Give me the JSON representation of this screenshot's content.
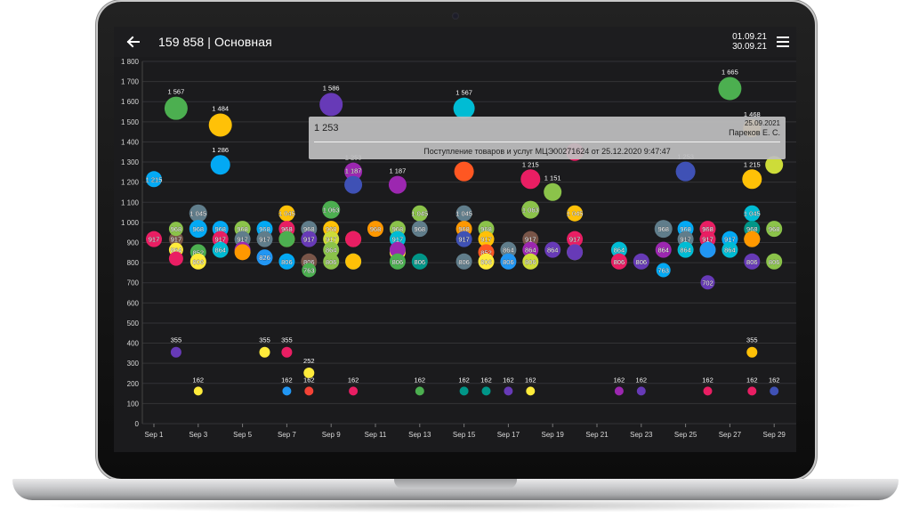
{
  "app": {
    "title": "159 858 | Основная",
    "date_from": "01.09.21",
    "date_to": "30.09.21",
    "back_icon": "arrow-left-icon",
    "menu_icon": "hamburger-menu-icon"
  },
  "tooltip": {
    "value": "1 253",
    "date": "25.09.2021",
    "user": "Пареков Е. С.",
    "document": "Поступление товаров и услуг МЦЭ00271624 от 25.12.2020 9:47:47"
  },
  "chart_data": {
    "type": "scatter",
    "ylim": [
      0,
      1800
    ],
    "yticks": [
      "0",
      "100",
      "200",
      "300",
      "400",
      "500",
      "600",
      "700",
      "800",
      "900",
      "1 000",
      "1 100",
      "1 200",
      "1 300",
      "1 400",
      "1 500",
      "1 600",
      "1 700",
      "1 800"
    ],
    "xticks": [
      "Sep 1",
      "Sep 3",
      "Sep 5",
      "Sep 7",
      "Sep 9",
      "Sep 11",
      "Sep 13",
      "Sep 15",
      "Sep 17",
      "Sep 19",
      "Sep 21",
      "Sep 23",
      "Sep 25",
      "Sep 27",
      "Sep 29"
    ],
    "grid": true,
    "points": [
      {
        "x": 0,
        "y": 917,
        "label": "917",
        "r": 9,
        "color": "#e91e63"
      },
      {
        "x": 0,
        "y": 1215,
        "label": "1 215",
        "r": 9,
        "color": "#03a9f4"
      },
      {
        "x": 1,
        "y": 1567,
        "label": "1 567",
        "r": 13,
        "color": "#4caf50"
      },
      {
        "x": 1,
        "y": 917,
        "label": "917",
        "r": 8,
        "color": "#795548"
      },
      {
        "x": 1,
        "y": 968,
        "label": "968",
        "r": 8,
        "color": "#8bc34a"
      },
      {
        "x": 1,
        "y": 864,
        "label": "864",
        "r": 8,
        "color": "#ffeb3b"
      },
      {
        "x": 1,
        "y": 820,
        "label": "",
        "r": 8,
        "color": "#e91e63"
      },
      {
        "x": 1,
        "y": 355,
        "label": "355",
        "r": 6,
        "color": "#673ab7"
      },
      {
        "x": 2,
        "y": 1045,
        "label": "1 045",
        "r": 10,
        "color": "#607d8b"
      },
      {
        "x": 2,
        "y": 968,
        "label": "968",
        "r": 10,
        "color": "#03a9f4"
      },
      {
        "x": 2,
        "y": 852,
        "label": "852",
        "r": 9,
        "color": "#4caf50"
      },
      {
        "x": 2,
        "y": 806,
        "label": "806",
        "r": 9,
        "color": "#ffeb3b"
      },
      {
        "x": 2,
        "y": 162,
        "label": "162",
        "r": 5,
        "color": "#ffeb3b"
      },
      {
        "x": 3,
        "y": 1484,
        "label": "1 484",
        "r": 13,
        "color": "#ffc107"
      },
      {
        "x": 3,
        "y": 1286,
        "label": "1 286",
        "r": 11,
        "color": "#03a9f4"
      },
      {
        "x": 3,
        "y": 968,
        "label": "968",
        "r": 9,
        "color": "#03a9f4"
      },
      {
        "x": 3,
        "y": 917,
        "label": "917",
        "r": 9,
        "color": "#e91e63"
      },
      {
        "x": 3,
        "y": 864,
        "label": "864",
        "r": 9,
        "color": "#00bcd4"
      },
      {
        "x": 4,
        "y": 968,
        "label": "968",
        "r": 9,
        "color": "#8bc34a"
      },
      {
        "x": 4,
        "y": 917,
        "label": "917",
        "r": 9,
        "color": "#607d8b"
      },
      {
        "x": 4,
        "y": 864,
        "label": "864",
        "r": 9,
        "color": "#9c27b0"
      },
      {
        "x": 4,
        "y": 852,
        "label": "",
        "r": 9,
        "color": "#ff9800"
      },
      {
        "x": 5,
        "y": 968,
        "label": "968",
        "r": 9,
        "color": "#03a9f4"
      },
      {
        "x": 5,
        "y": 917,
        "label": "917",
        "r": 9,
        "color": "#607d8b"
      },
      {
        "x": 5,
        "y": 826,
        "label": "826",
        "r": 9,
        "color": "#2196f3"
      },
      {
        "x": 5,
        "y": 355,
        "label": "355",
        "r": 6,
        "color": "#ffeb3b"
      },
      {
        "x": 6,
        "y": 1045,
        "label": "1 045",
        "r": 9,
        "color": "#ffc107"
      },
      {
        "x": 6,
        "y": 968,
        "label": "968",
        "r": 9,
        "color": "#e91e63"
      },
      {
        "x": 6,
        "y": 917,
        "label": "917",
        "r": 9,
        "color": "#ff9800"
      },
      {
        "x": 6,
        "y": 917,
        "label": "",
        "r": 9,
        "color": "#4caf50"
      },
      {
        "x": 6,
        "y": 806,
        "label": "806",
        "r": 9,
        "color": "#03a9f4"
      },
      {
        "x": 6,
        "y": 355,
        "label": "355",
        "r": 6,
        "color": "#e91e63"
      },
      {
        "x": 6,
        "y": 162,
        "label": "162",
        "r": 5,
        "color": "#2196f3"
      },
      {
        "x": 7,
        "y": 968,
        "label": "968",
        "r": 9,
        "color": "#607d8b"
      },
      {
        "x": 7,
        "y": 917,
        "label": "917",
        "r": 9,
        "color": "#673ab7"
      },
      {
        "x": 7,
        "y": 806,
        "label": "806",
        "r": 9,
        "color": "#795548"
      },
      {
        "x": 7,
        "y": 763,
        "label": "763",
        "r": 8,
        "color": "#4caf50"
      },
      {
        "x": 7,
        "y": 252,
        "label": "252",
        "r": 6,
        "color": "#ffeb3b"
      },
      {
        "x": 7,
        "y": 162,
        "label": "162",
        "r": 5,
        "color": "#f44336"
      },
      {
        "x": 8,
        "y": 1586,
        "label": "1 586",
        "r": 13,
        "color": "#673ab7"
      },
      {
        "x": 8,
        "y": 1063,
        "label": "1 063",
        "r": 10,
        "color": "#4caf50"
      },
      {
        "x": 8,
        "y": 968,
        "label": "968",
        "r": 9,
        "color": "#ffc107"
      },
      {
        "x": 8,
        "y": 917,
        "label": "917",
        "r": 9,
        "color": "#cddc39"
      },
      {
        "x": 8,
        "y": 864,
        "label": "864",
        "r": 9,
        "color": "#8bc34a"
      },
      {
        "x": 8,
        "y": 806,
        "label": "806",
        "r": 9,
        "color": "#8bc34a"
      },
      {
        "x": 9,
        "y": 1253,
        "label": "1 253",
        "r": 10,
        "color": "#9c27b0"
      },
      {
        "x": 9,
        "y": 1187,
        "label": "1 187",
        "r": 10,
        "color": "#3f51b5"
      },
      {
        "x": 9,
        "y": 917,
        "label": "917",
        "r": 9,
        "color": "#ff9800"
      },
      {
        "x": 9,
        "y": 917,
        "label": "",
        "r": 9,
        "color": "#e91e63"
      },
      {
        "x": 9,
        "y": 806,
        "label": "806",
        "r": 9,
        "color": "#03a9f4"
      },
      {
        "x": 9,
        "y": 806,
        "label": "",
        "r": 9,
        "color": "#ffc107"
      },
      {
        "x": 9,
        "y": 162,
        "label": "162",
        "r": 5,
        "color": "#e91e63"
      },
      {
        "x": 10,
        "y": 968,
        "label": "968",
        "r": 9,
        "color": "#ff9800"
      },
      {
        "x": 11,
        "y": 1187,
        "label": "1 187",
        "r": 10,
        "color": "#9c27b0"
      },
      {
        "x": 11,
        "y": 968,
        "label": "968",
        "r": 9,
        "color": "#8bc34a"
      },
      {
        "x": 11,
        "y": 917,
        "label": "917",
        "r": 9,
        "color": "#00bcd4"
      },
      {
        "x": 11,
        "y": 852,
        "label": "852",
        "r": 9,
        "color": "#ffeb3b"
      },
      {
        "x": 11,
        "y": 864,
        "label": "",
        "r": 9,
        "color": "#9c27b0"
      },
      {
        "x": 11,
        "y": 806,
        "label": "806",
        "r": 9,
        "color": "#4caf50"
      },
      {
        "x": 12,
        "y": 1045,
        "label": "1 045",
        "r": 9,
        "color": "#8bc34a"
      },
      {
        "x": 12,
        "y": 968,
        "label": "968",
        "r": 9,
        "color": "#607d8b"
      },
      {
        "x": 12,
        "y": 806,
        "label": "806",
        "r": 9,
        "color": "#009688"
      },
      {
        "x": 12,
        "y": 162,
        "label": "162",
        "r": 5,
        "color": "#4caf50"
      },
      {
        "x": 14,
        "y": 1567,
        "label": "1 567",
        "r": 12,
        "color": "#00bcd4"
      },
      {
        "x": 14,
        "y": 1253,
        "label": "",
        "r": 11,
        "color": "#ff5722"
      },
      {
        "x": 14,
        "y": 1045,
        "label": "1 045",
        "r": 9,
        "color": "#607d8b"
      },
      {
        "x": 14,
        "y": 968,
        "label": "968",
        "r": 9,
        "color": "#ff9800"
      },
      {
        "x": 14,
        "y": 917,
        "label": "917",
        "r": 9,
        "color": "#3f51b5"
      },
      {
        "x": 14,
        "y": 806,
        "label": "806",
        "r": 9,
        "color": "#607d8b"
      },
      {
        "x": 14,
        "y": 162,
        "label": "162",
        "r": 5,
        "color": "#009688"
      },
      {
        "x": 15,
        "y": 968,
        "label": "968",
        "r": 9,
        "color": "#8bc34a"
      },
      {
        "x": 15,
        "y": 917,
        "label": "917",
        "r": 9,
        "color": "#ffc107"
      },
      {
        "x": 15,
        "y": 852,
        "label": "852",
        "r": 9,
        "color": "#ff5722"
      },
      {
        "x": 15,
        "y": 806,
        "label": "806",
        "r": 9,
        "color": "#ffeb3b"
      },
      {
        "x": 15,
        "y": 162,
        "label": "162",
        "r": 5,
        "color": "#009688"
      },
      {
        "x": 16,
        "y": 864,
        "label": "864",
        "r": 9,
        "color": "#607d8b"
      },
      {
        "x": 16,
        "y": 806,
        "label": "806",
        "r": 9,
        "color": "#2196f3"
      },
      {
        "x": 16,
        "y": 162,
        "label": "162",
        "r": 5,
        "color": "#673ab7"
      },
      {
        "x": 17,
        "y": 1215,
        "label": "1 215",
        "r": 11,
        "color": "#e91e63"
      },
      {
        "x": 17,
        "y": 1063,
        "label": "1 063",
        "r": 10,
        "color": "#8bc34a"
      },
      {
        "x": 17,
        "y": 917,
        "label": "917",
        "r": 9,
        "color": "#795548"
      },
      {
        "x": 17,
        "y": 864,
        "label": "864",
        "r": 9,
        "color": "#9c27b0"
      },
      {
        "x": 17,
        "y": 806,
        "label": "806",
        "r": 9,
        "color": "#cddc39"
      },
      {
        "x": 17,
        "y": 162,
        "label": "162",
        "r": 5,
        "color": "#ffeb3b"
      },
      {
        "x": 18,
        "y": 1151,
        "label": "1 151",
        "r": 10,
        "color": "#8bc34a"
      },
      {
        "x": 18,
        "y": 864,
        "label": "864",
        "r": 9,
        "color": "#673ab7"
      },
      {
        "x": 19,
        "y": 1350,
        "label": "",
        "r": 10,
        "color": "#e91e63"
      },
      {
        "x": 19,
        "y": 1045,
        "label": "1 045",
        "r": 9,
        "color": "#ffc107"
      },
      {
        "x": 19,
        "y": 917,
        "label": "917",
        "r": 9,
        "color": "#e91e63"
      },
      {
        "x": 19,
        "y": 852,
        "label": "852",
        "r": 9,
        "color": "#8bc34a"
      },
      {
        "x": 19,
        "y": 852,
        "label": "",
        "r": 9,
        "color": "#673ab7"
      },
      {
        "x": 21,
        "y": 864,
        "label": "864",
        "r": 9,
        "color": "#00bcd4"
      },
      {
        "x": 21,
        "y": 806,
        "label": "806",
        "r": 9,
        "color": "#e91e63"
      },
      {
        "x": 21,
        "y": 162,
        "label": "162",
        "r": 5,
        "color": "#9c27b0"
      },
      {
        "x": 22,
        "y": 806,
        "label": "806",
        "r": 9,
        "color": "#673ab7"
      },
      {
        "x": 22,
        "y": 162,
        "label": "162",
        "r": 5,
        "color": "#673ab7"
      },
      {
        "x": 23,
        "y": 968,
        "label": "968",
        "r": 10,
        "color": "#607d8b"
      },
      {
        "x": 23,
        "y": 864,
        "label": "864",
        "r": 9,
        "color": "#9c27b0"
      },
      {
        "x": 23,
        "y": 763,
        "label": "763",
        "r": 8,
        "color": "#03a9f4"
      },
      {
        "x": 24,
        "y": 1253,
        "label": "1 253",
        "r": 11,
        "color": "#3f51b5"
      },
      {
        "x": 24,
        "y": 968,
        "label": "968",
        "r": 9,
        "color": "#03a9f4"
      },
      {
        "x": 24,
        "y": 917,
        "label": "917",
        "r": 9,
        "color": "#607d8b"
      },
      {
        "x": 24,
        "y": 864,
        "label": "864",
        "r": 9,
        "color": "#00bcd4"
      },
      {
        "x": 25,
        "y": 968,
        "label": "968",
        "r": 9,
        "color": "#e91e63"
      },
      {
        "x": 25,
        "y": 917,
        "label": "917",
        "r": 9,
        "color": "#e91e63"
      },
      {
        "x": 25,
        "y": 864,
        "label": "864",
        "r": 9,
        "color": "#795548"
      },
      {
        "x": 25,
        "y": 864,
        "label": "",
        "r": 9,
        "color": "#2196f3"
      },
      {
        "x": 25,
        "y": 702,
        "label": "702",
        "r": 8,
        "color": "#673ab7"
      },
      {
        "x": 25,
        "y": 162,
        "label": "162",
        "r": 5,
        "color": "#e91e63"
      },
      {
        "x": 26,
        "y": 1665,
        "label": "1 665",
        "r": 13,
        "color": "#4caf50"
      },
      {
        "x": 26,
        "y": 917,
        "label": "917",
        "r": 9,
        "color": "#03a9f4"
      },
      {
        "x": 26,
        "y": 864,
        "label": "864",
        "r": 9,
        "color": "#00bcd4"
      },
      {
        "x": 27,
        "y": 1468,
        "label": "1 468",
        "r": 10,
        "color": "#ff9800"
      },
      {
        "x": 27,
        "y": 1215,
        "label": "1 215",
        "r": 11,
        "color": "#ffc107"
      },
      {
        "x": 27,
        "y": 1045,
        "label": "1 045",
        "r": 9,
        "color": "#00bcd4"
      },
      {
        "x": 27,
        "y": 968,
        "label": "968",
        "r": 9,
        "color": "#009688"
      },
      {
        "x": 27,
        "y": 917,
        "label": "917",
        "r": 9,
        "color": "#ffeb3b"
      },
      {
        "x": 27,
        "y": 917,
        "label": "",
        "r": 9,
        "color": "#ff9800"
      },
      {
        "x": 27,
        "y": 806,
        "label": "806",
        "r": 9,
        "color": "#673ab7"
      },
      {
        "x": 27,
        "y": 355,
        "label": "355",
        "r": 6,
        "color": "#ffc107"
      },
      {
        "x": 27,
        "y": 162,
        "label": "162",
        "r": 5,
        "color": "#e91e63"
      },
      {
        "x": 28,
        "y": 1286,
        "label": "",
        "r": 10,
        "color": "#cddc39"
      },
      {
        "x": 28,
        "y": 968,
        "label": "968",
        "r": 9,
        "color": "#8bc34a"
      },
      {
        "x": 28,
        "y": 806,
        "label": "806",
        "r": 9,
        "color": "#8bc34a"
      },
      {
        "x": 28,
        "y": 162,
        "label": "162",
        "r": 5,
        "color": "#3f51b5"
      }
    ]
  }
}
